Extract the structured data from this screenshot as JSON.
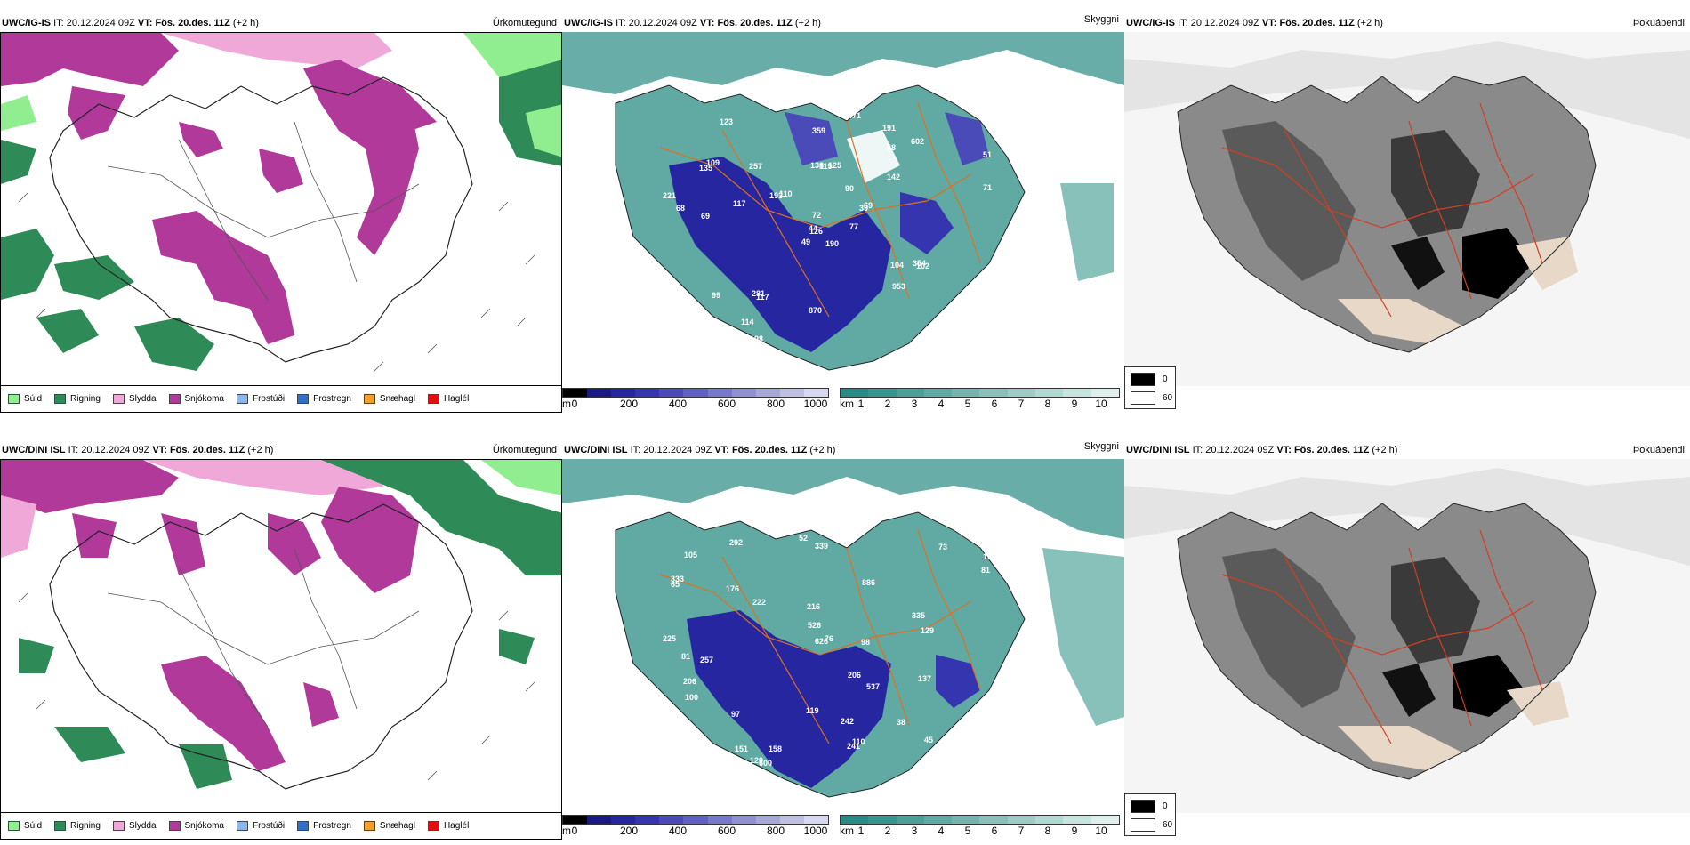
{
  "rows": [
    {
      "model": "UWC/IG-IS",
      "it_label": "IT:",
      "it_value": "20.12.2024 09Z",
      "vt_label": "VT:",
      "vt_value": "Fös. 20.des. 11Z",
      "lead": "(+2 h)",
      "panel1_title": "Úrkomutegund",
      "panel2_title": "Skyggni",
      "panel3_title": "Þokuábendi"
    },
    {
      "model": "UWC/DINI ISL",
      "it_label": "IT:",
      "it_value": "20.12.2024 09Z",
      "vt_label": "VT:",
      "vt_value": "Fös. 20.des. 11Z",
      "lead": "(+2 h)",
      "panel1_title": "Úrkomutegund",
      "panel2_title": "Skyggni",
      "panel3_title": "Þokuábendi"
    }
  ],
  "precip_legend": [
    {
      "label": "Súld",
      "color": "#90ee90"
    },
    {
      "label": "Rigning",
      "color": "#2e8b57"
    },
    {
      "label": "Slydda",
      "color": "#f0a8d8"
    },
    {
      "label": "Snjókoma",
      "color": "#b0399a"
    },
    {
      "label": "Frostúði",
      "color": "#87b8f0"
    },
    {
      "label": "Frostregn",
      "color": "#2f6fcf"
    },
    {
      "label": "Snæhagl",
      "color": "#f0a030"
    },
    {
      "label": "Haglél",
      "color": "#e01010"
    }
  ],
  "vis_m_bar": {
    "unit": "m",
    "ticks": [
      "0",
      "200",
      "400",
      "600",
      "800",
      "1000"
    ],
    "colors": [
      "#000000",
      "#1a1a80",
      "#2626a0",
      "#3535b0",
      "#4a4ab8",
      "#6060c0",
      "#7878c8",
      "#9090d0",
      "#a8a8d8",
      "#c0c0e0",
      "#d8d8ee"
    ]
  },
  "vis_km_bar": {
    "unit": "km",
    "ticks": [
      "1",
      "2",
      "3",
      "4",
      "5",
      "6",
      "7",
      "8",
      "9",
      "10"
    ],
    "colors": [
      "#2a8a84",
      "#3a948e",
      "#4d9f98",
      "#60aaa3",
      "#73b5ae",
      "#88c1ba",
      "#9dccc6",
      "#b3d8d2",
      "#c9e3de",
      "#e0efec"
    ]
  },
  "fog_legend": [
    {
      "value": "0",
      "color": "#000000"
    },
    {
      "value": "60",
      "color": "#ffffff"
    }
  ],
  "visibility_labels_row1": [
    "190",
    "135",
    "126",
    "181",
    "39",
    "117",
    "191",
    "125",
    "58",
    "77",
    "123",
    "121",
    "69",
    "51",
    "49",
    "142",
    "69",
    "138",
    "90",
    "99",
    "110",
    "110",
    "114",
    "119",
    "69",
    "102",
    "109",
    "359",
    "68",
    "104",
    "71",
    "44",
    "870",
    "72",
    "257",
    "602",
    "281",
    "147",
    "237",
    "354",
    "471",
    "193",
    "117",
    "953",
    "198",
    "221"
  ],
  "visibility_labels_row2": [
    "225",
    "339",
    "335",
    "127",
    "333",
    "111",
    "257",
    "886",
    "216",
    "73",
    "76",
    "137",
    "52",
    "65",
    "176",
    "97",
    "110",
    "81",
    "206",
    "119",
    "38",
    "45",
    "81",
    "526",
    "151",
    "626",
    "537",
    "292",
    "600",
    "241",
    "206",
    "90",
    "98",
    "106",
    "120",
    "100",
    "129",
    "105",
    "158",
    "222",
    "242"
  ]
}
